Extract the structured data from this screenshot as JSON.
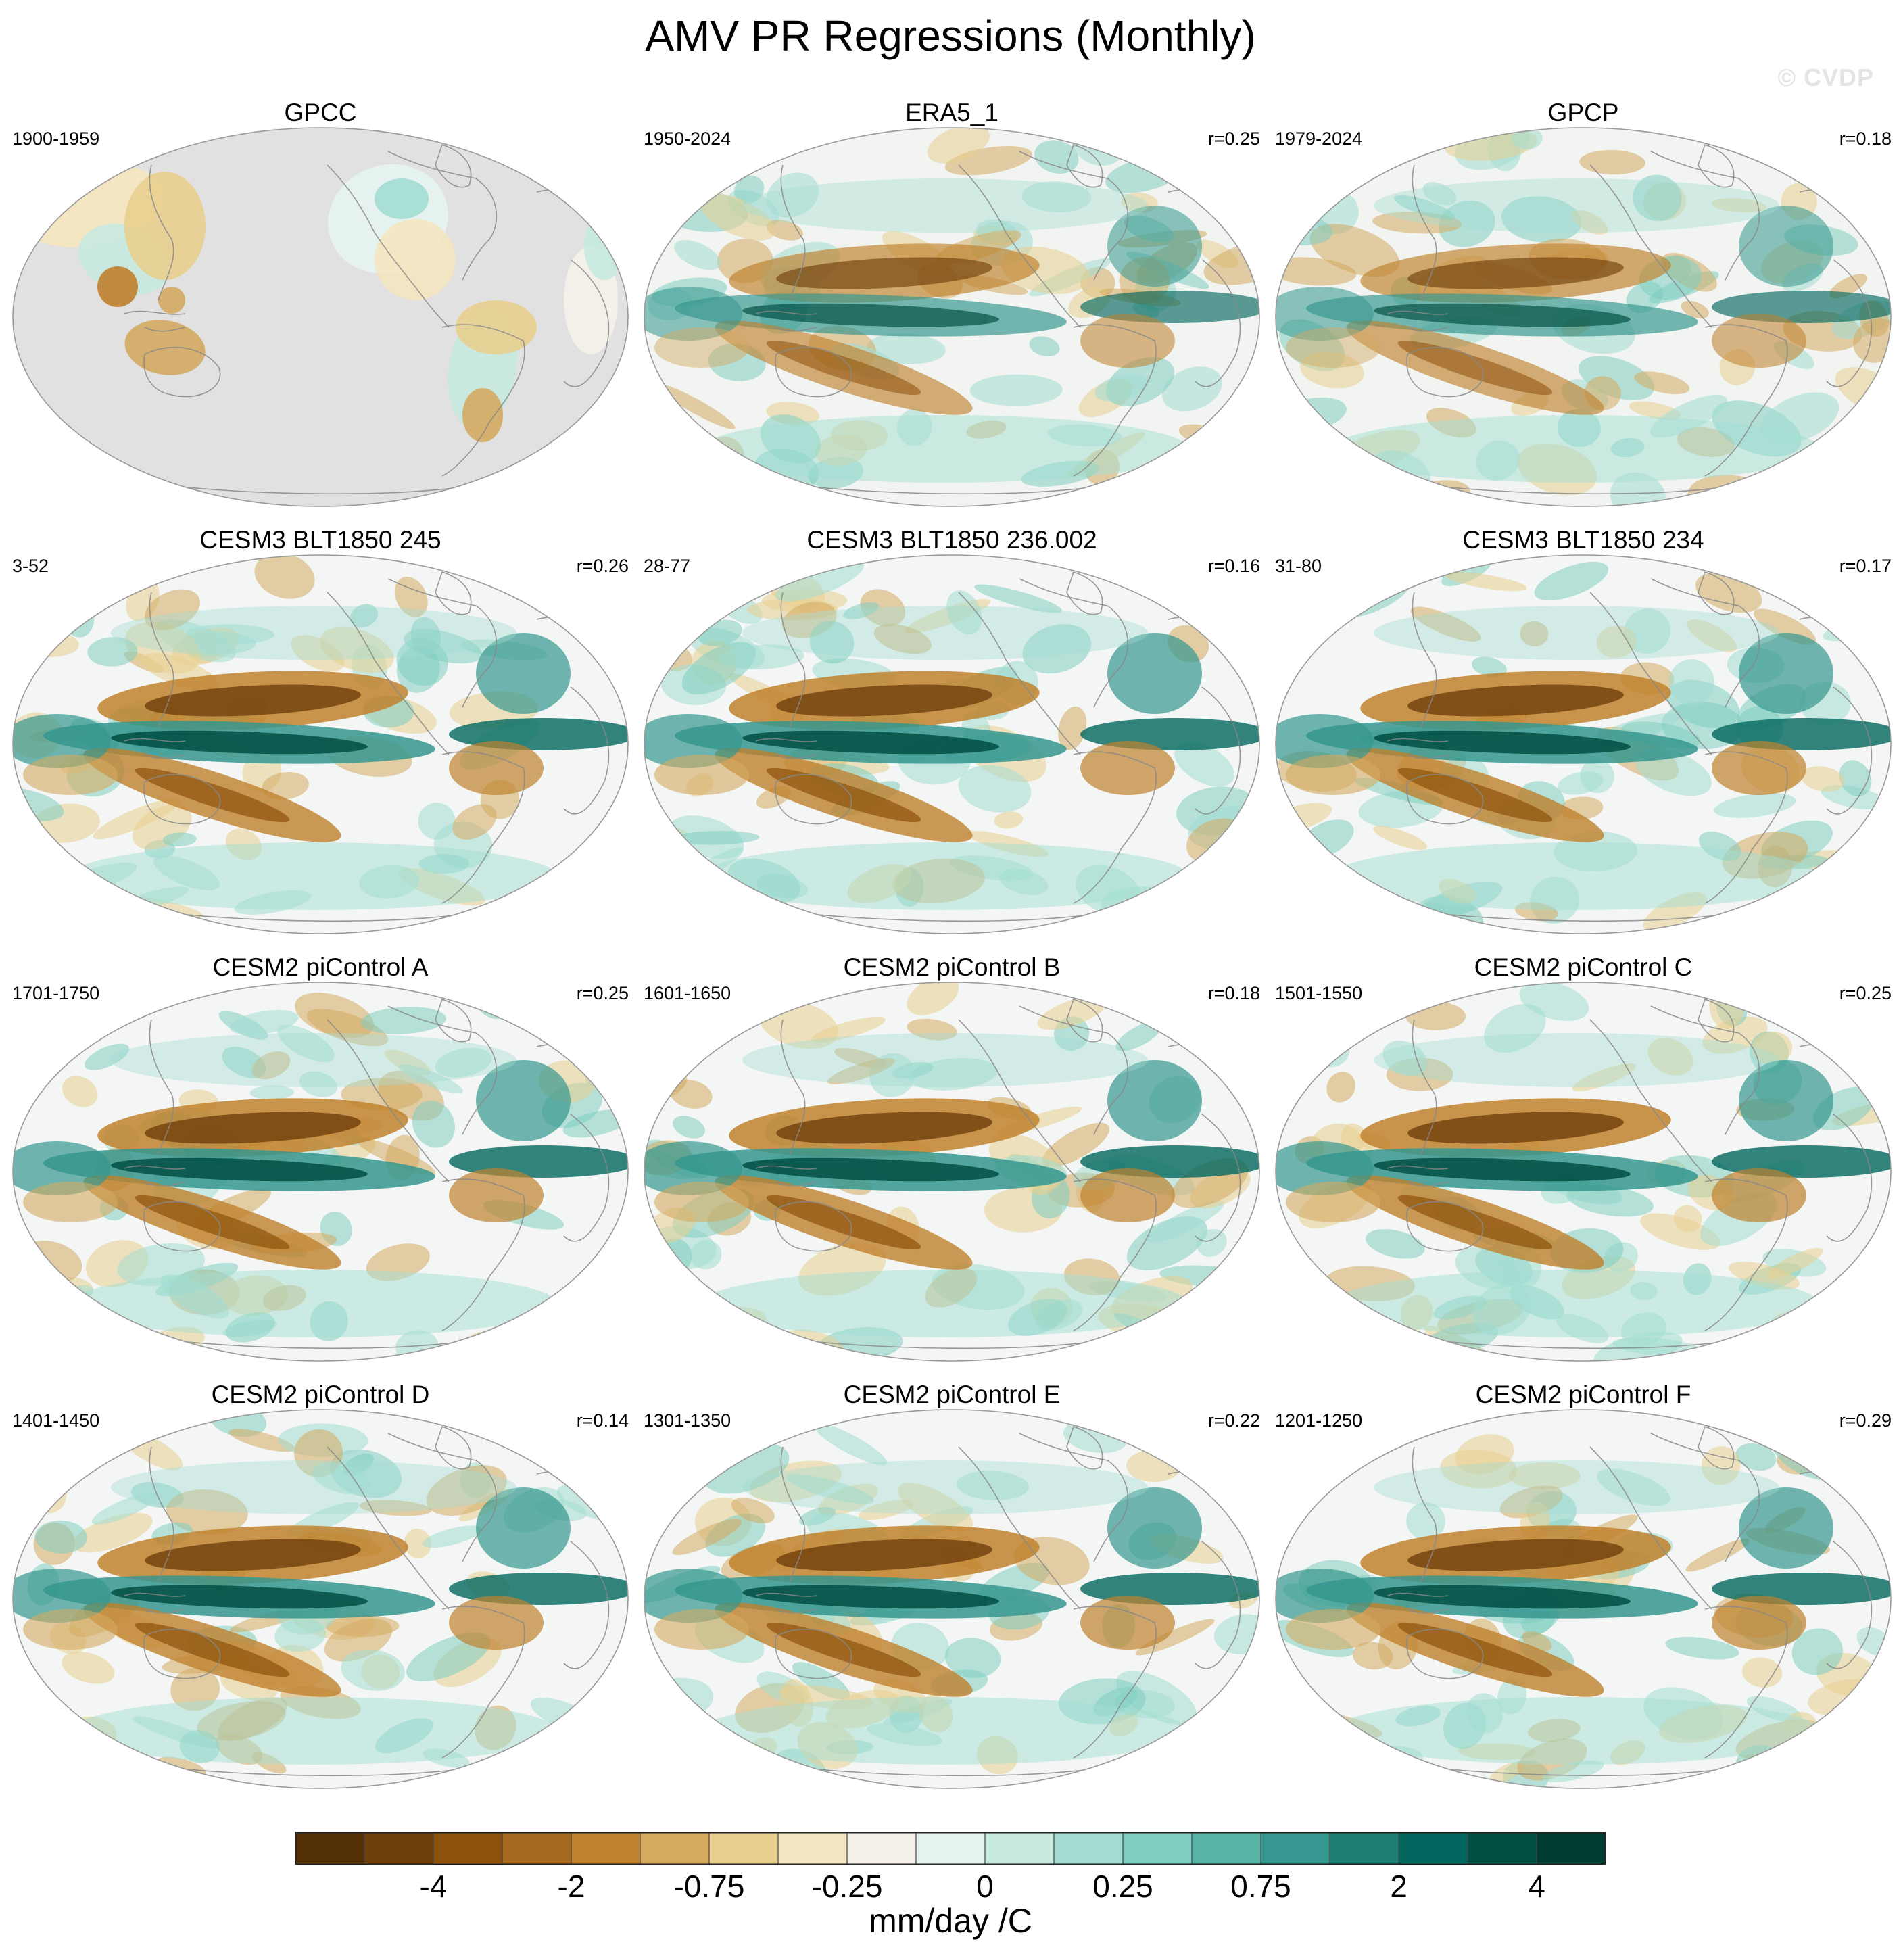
{
  "title": "AMV PR Regressions (Monthly)",
  "watermark": "© CVDP",
  "panels": [
    {
      "title": "GPCC",
      "period": "1900-1959",
      "corr": "",
      "style": "gpcc"
    },
    {
      "title": "ERA5_1",
      "period": "1950-2024",
      "corr": "r=0.25",
      "style": "obs"
    },
    {
      "title": "GPCP",
      "period": "1979-2024",
      "corr": "r=0.18",
      "style": "obs"
    },
    {
      "title": "CESM3 BLT1850 245",
      "period": "3-52",
      "corr": "r=0.26",
      "style": "model"
    },
    {
      "title": "CESM3 BLT1850 236.002",
      "period": "28-77",
      "corr": "r=0.16",
      "style": "model"
    },
    {
      "title": "CESM3 BLT1850 234",
      "period": "31-80",
      "corr": "r=0.17",
      "style": "model"
    },
    {
      "title": "CESM2 piControl A",
      "period": "1701-1750",
      "corr": "r=0.25",
      "style": "model"
    },
    {
      "title": "CESM2 piControl B",
      "period": "1601-1650",
      "corr": "r=0.18",
      "style": "model"
    },
    {
      "title": "CESM2 piControl C",
      "period": "1501-1550",
      "corr": "r=0.25",
      "style": "model"
    },
    {
      "title": "CESM2 piControl D",
      "period": "1401-1450",
      "corr": "r=0.14",
      "style": "model"
    },
    {
      "title": "CESM2 piControl E",
      "period": "1301-1350",
      "corr": "r=0.22",
      "style": "model"
    },
    {
      "title": "CESM2 piControl F",
      "period": "1201-1250",
      "corr": "r=0.29",
      "style": "model"
    }
  ],
  "colorbar": {
    "colors": [
      "#543005",
      "#6f3f0b",
      "#8c510a",
      "#a86a1f",
      "#bf812d",
      "#d4aa61",
      "#e8cf8f",
      "#f4e6c0",
      "#f5f1ea",
      "#e6f2ef",
      "#c7e9e0",
      "#a3ddd1",
      "#80cdc1",
      "#5ab4a8",
      "#35978f",
      "#1d7f75",
      "#01665e",
      "#014e43",
      "#003c30"
    ],
    "labels": [
      "-4",
      "-2",
      "-0.75",
      "-0.25",
      "0",
      "0.25",
      "0.75",
      "2",
      "4"
    ],
    "units": "mm/day /C"
  },
  "colors": {
    "land_missing": "#e1e1e1",
    "coast": "#888888",
    "border": "#999999"
  }
}
